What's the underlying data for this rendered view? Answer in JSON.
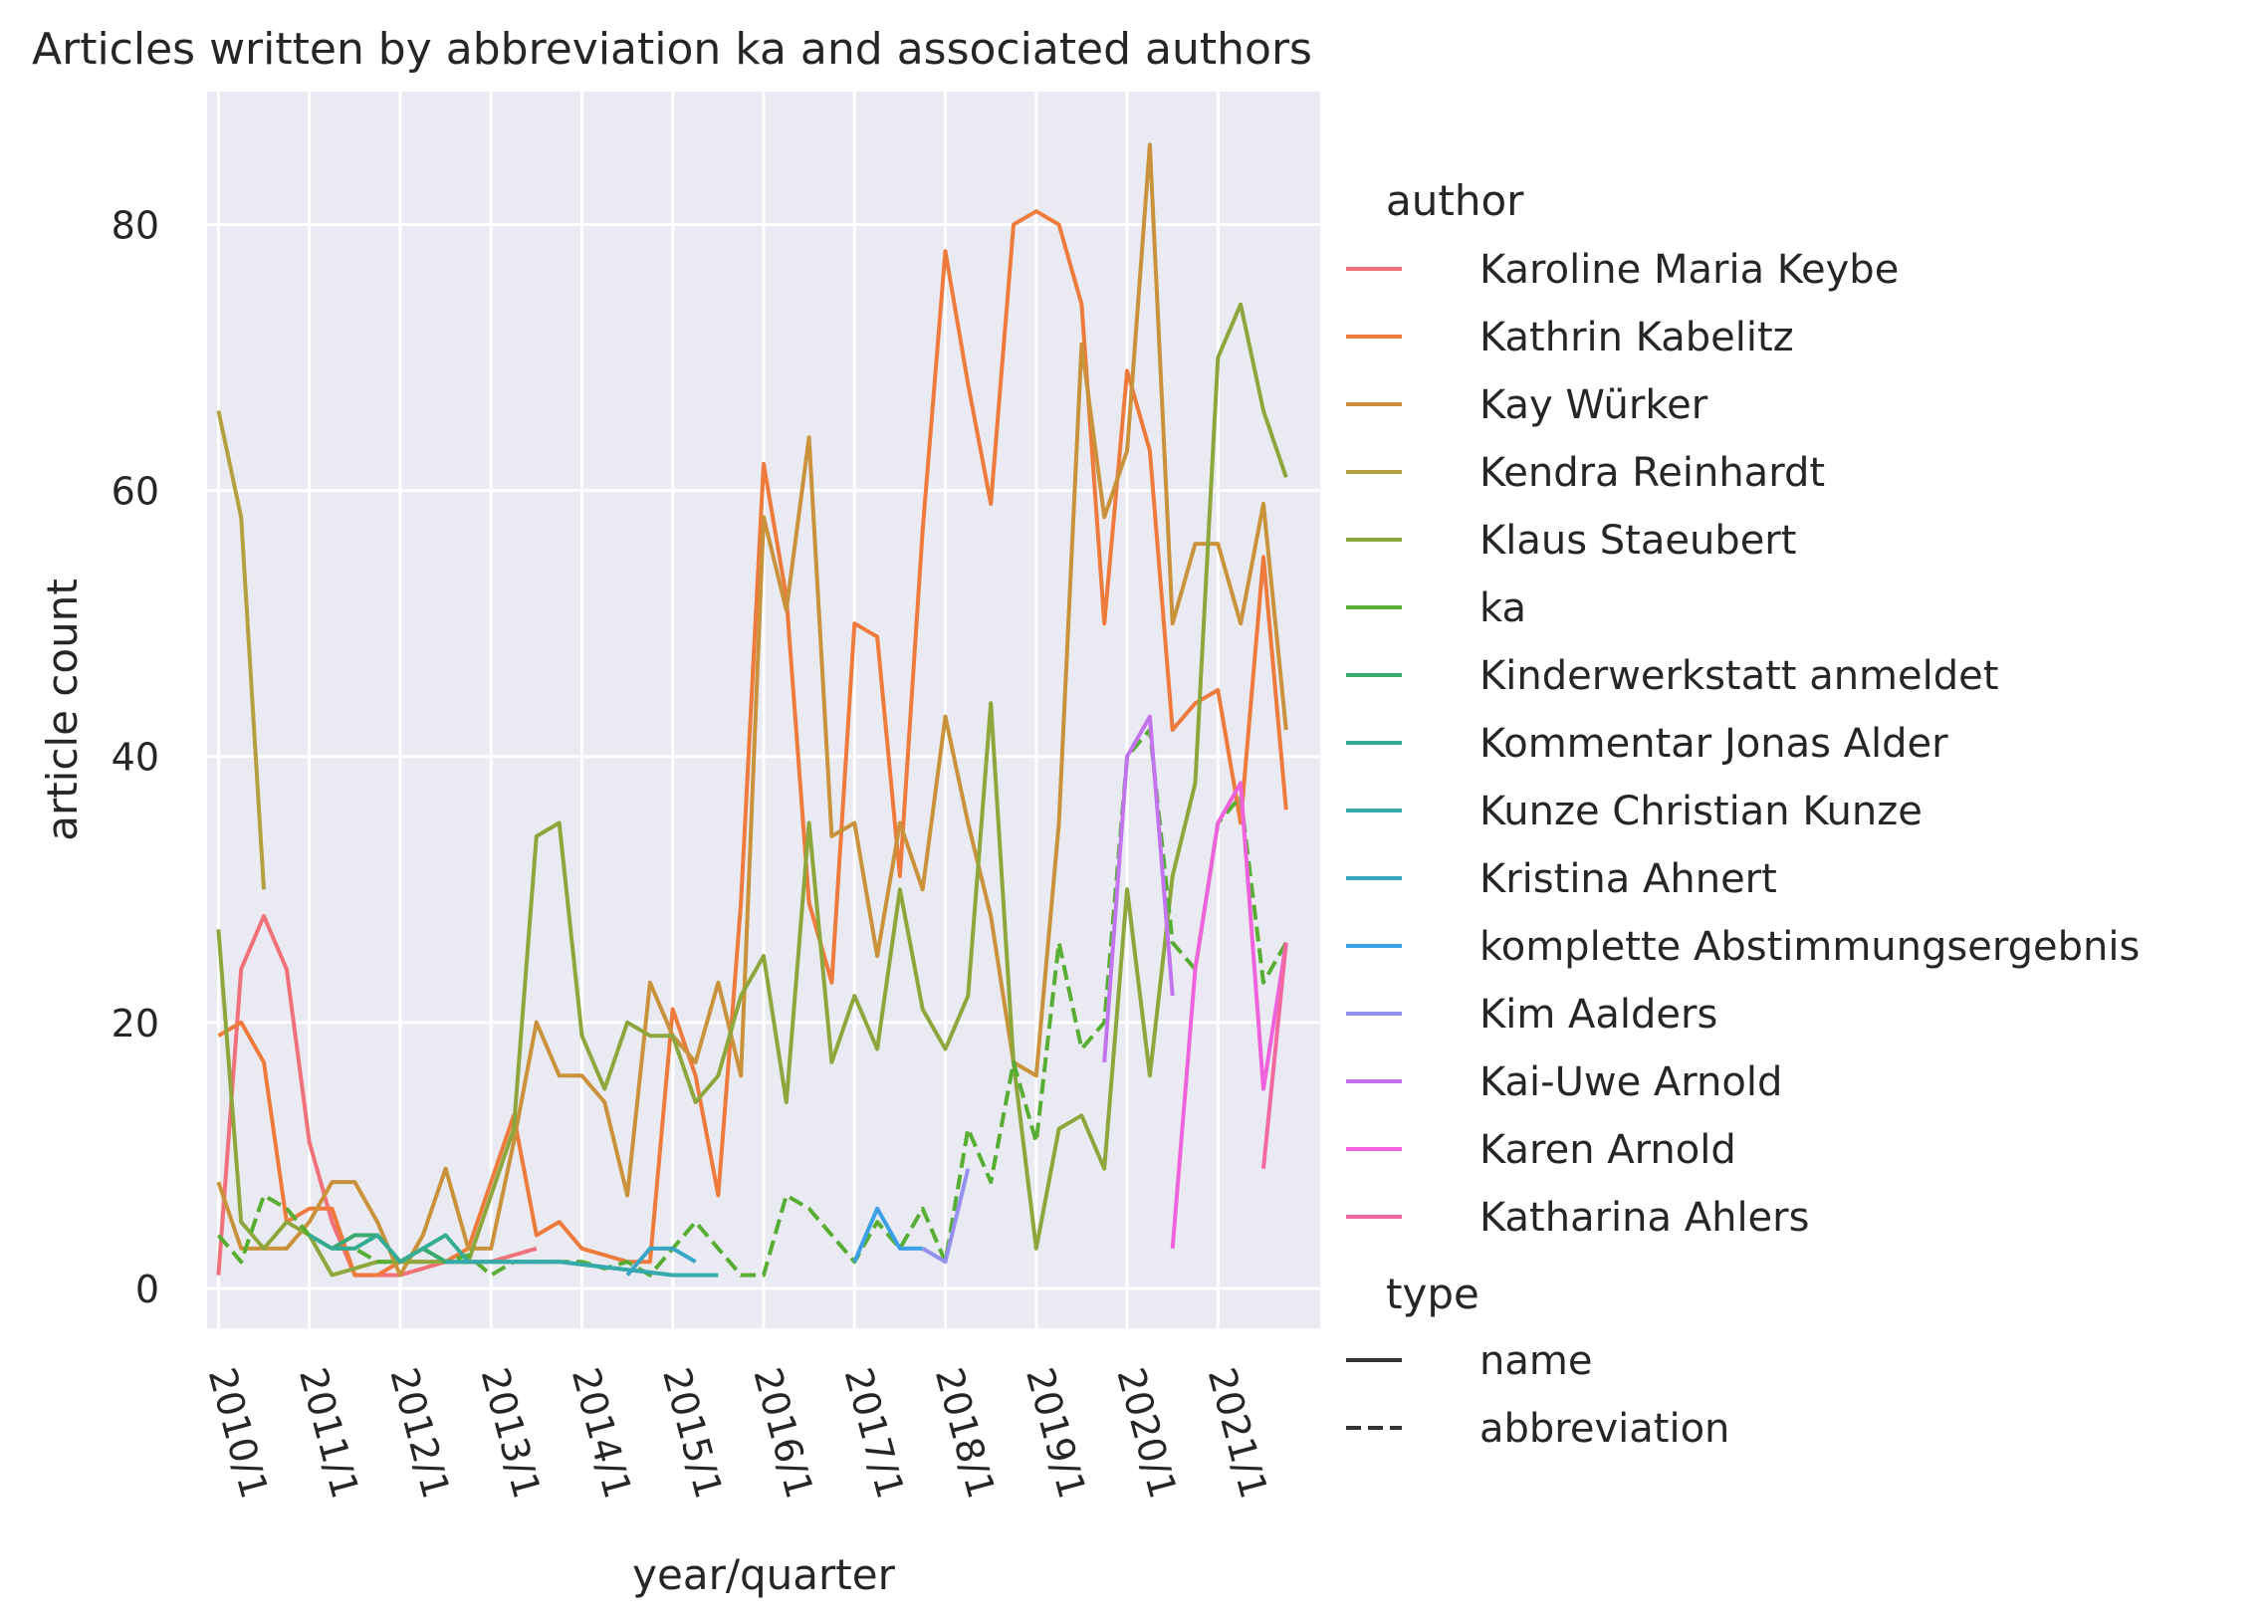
{
  "chart_data": {
    "type": "line",
    "title": "Articles written by abbreviation ka and associated authors",
    "xlabel": "year/quarter",
    "ylabel": "article count",
    "x_ticks": [
      "2010/1",
      "2011/1",
      "2012/1",
      "2013/1",
      "2014/1",
      "2015/1",
      "2016/1",
      "2017/1",
      "2018/1",
      "2019/1",
      "2020/1",
      "2021/1"
    ],
    "y_ticks": [
      0,
      20,
      40,
      60,
      80
    ],
    "ylim": [
      -3,
      90
    ],
    "xlim": [
      -0.5,
      48.5
    ],
    "x_unit": "quarter index from 2010/1",
    "grid": true,
    "legend_placement": "right",
    "legend": {
      "hue_title": "author",
      "style_title": "type",
      "style_entries": [
        {
          "label": "name",
          "dash": "solid"
        },
        {
          "label": "abbreviation",
          "dash": "dashed"
        }
      ]
    },
    "series": [
      {
        "name": "Karoline Maria Keybe",
        "color": "#f0717a",
        "dash": "solid",
        "points": [
          [
            0,
            1
          ],
          [
            1,
            24
          ],
          [
            2,
            28
          ],
          [
            3,
            24
          ],
          [
            4,
            11
          ],
          [
            5,
            5
          ],
          [
            6,
            1
          ],
          [
            7,
            1
          ],
          [
            8,
            1
          ],
          [
            9,
            1.5
          ],
          [
            10,
            2
          ],
          [
            11,
            2
          ],
          [
            12,
            2
          ],
          [
            13,
            2.5
          ],
          [
            14,
            3
          ]
        ]
      },
      {
        "name": "Kathrin Kabelitz",
        "color": "#ee7a3b",
        "dash": "solid",
        "points": [
          [
            0,
            19
          ],
          [
            1,
            20
          ],
          [
            2,
            17
          ],
          [
            3,
            5
          ],
          [
            4,
            6
          ],
          [
            5,
            6
          ],
          [
            6,
            1
          ],
          [
            7,
            1
          ],
          [
            8,
            2
          ],
          [
            9,
            2
          ],
          [
            10,
            2
          ],
          [
            11,
            3
          ],
          [
            12,
            8
          ],
          [
            13,
            13
          ],
          [
            14,
            4
          ],
          [
            15,
            5
          ],
          [
            16,
            3
          ],
          [
            17,
            2.5
          ],
          [
            18,
            2
          ],
          [
            19,
            2
          ],
          [
            20,
            21
          ],
          [
            21,
            16
          ],
          [
            22,
            7
          ],
          [
            23,
            29
          ],
          [
            24,
            62
          ],
          [
            25,
            52
          ],
          [
            26,
            29
          ],
          [
            27,
            23
          ],
          [
            28,
            50
          ],
          [
            29,
            49
          ],
          [
            30,
            31
          ],
          [
            31,
            57
          ],
          [
            32,
            78
          ],
          [
            33,
            68
          ],
          [
            34,
            59
          ],
          [
            35,
            80
          ],
          [
            36,
            81
          ],
          [
            37,
            80
          ],
          [
            38,
            74
          ],
          [
            39,
            50
          ],
          [
            40,
            69
          ],
          [
            41,
            63
          ],
          [
            42,
            42
          ],
          [
            43,
            44
          ],
          [
            44,
            45
          ],
          [
            45,
            35
          ],
          [
            46,
            55
          ],
          [
            47,
            36
          ]
        ]
      },
      {
        "name": "Kay Würker",
        "color": "#c9923b",
        "dash": "solid",
        "points": [
          [
            0,
            8
          ],
          [
            1,
            3
          ],
          [
            2,
            3
          ],
          [
            3,
            3
          ],
          [
            4,
            5
          ],
          [
            5,
            8
          ],
          [
            6,
            8
          ],
          [
            7,
            5
          ],
          [
            8,
            1
          ],
          [
            9,
            4
          ],
          [
            10,
            9
          ],
          [
            11,
            3
          ],
          [
            12,
            3
          ],
          [
            13,
            11
          ],
          [
            14,
            20
          ],
          [
            15,
            16
          ],
          [
            16,
            16
          ],
          [
            17,
            14
          ],
          [
            18,
            7
          ],
          [
            19,
            23
          ],
          [
            20,
            19
          ],
          [
            21,
            17
          ],
          [
            22,
            23
          ],
          [
            23,
            16
          ],
          [
            24,
            58
          ],
          [
            25,
            51
          ],
          [
            26,
            64
          ],
          [
            27,
            34
          ],
          [
            28,
            35
          ],
          [
            29,
            25
          ],
          [
            30,
            35
          ],
          [
            31,
            30
          ],
          [
            32,
            43
          ],
          [
            33,
            35
          ],
          [
            34,
            28
          ],
          [
            35,
            17
          ],
          [
            36,
            16
          ],
          [
            37,
            35
          ],
          [
            38,
            71
          ],
          [
            39,
            58
          ],
          [
            40,
            63
          ],
          [
            41,
            86
          ],
          [
            42,
            50
          ],
          [
            43,
            56
          ],
          [
            44,
            56
          ],
          [
            45,
            50
          ],
          [
            46,
            59
          ],
          [
            47,
            42
          ]
        ]
      },
      {
        "name": "Kendra Reinhardt",
        "color": "#b4a03e",
        "dash": "solid",
        "points": [
          [
            0,
            66
          ],
          [
            1,
            58
          ],
          [
            2,
            30
          ]
        ]
      },
      {
        "name": "Klaus Staeubert",
        "color": "#8ea73c",
        "dash": "solid",
        "points": [
          [
            0,
            27
          ],
          [
            1,
            5
          ],
          [
            2,
            3
          ],
          [
            3,
            5
          ],
          [
            4,
            4
          ],
          [
            5,
            1
          ],
          [
            6,
            1.5
          ],
          [
            7,
            2
          ],
          [
            8,
            2
          ],
          [
            9,
            2
          ],
          [
            10,
            2
          ],
          [
            11,
            2
          ],
          [
            12,
            7
          ],
          [
            13,
            12
          ],
          [
            14,
            34
          ],
          [
            15,
            35
          ],
          [
            16,
            19
          ],
          [
            17,
            15
          ],
          [
            18,
            20
          ],
          [
            19,
            19
          ],
          [
            20,
            19
          ],
          [
            21,
            14
          ],
          [
            22,
            16
          ],
          [
            23,
            22
          ],
          [
            24,
            25
          ],
          [
            25,
            14
          ],
          [
            26,
            35
          ],
          [
            27,
            17
          ],
          [
            28,
            22
          ],
          [
            29,
            18
          ],
          [
            30,
            30
          ],
          [
            31,
            21
          ],
          [
            32,
            18
          ],
          [
            33,
            22
          ],
          [
            34,
            44
          ],
          [
            35,
            17
          ],
          [
            36,
            3
          ],
          [
            37,
            12
          ],
          [
            38,
            13
          ],
          [
            39,
            9
          ],
          [
            40,
            30
          ],
          [
            41,
            16
          ],
          [
            42,
            31
          ],
          [
            43,
            38
          ],
          [
            44,
            70
          ],
          [
            45,
            74
          ],
          [
            46,
            66
          ],
          [
            47,
            61
          ]
        ]
      },
      {
        "name": "ka",
        "color": "#58ad33",
        "dash": "dashed",
        "points": [
          [
            0,
            4
          ],
          [
            1,
            2
          ],
          [
            2,
            7
          ],
          [
            3,
            6
          ],
          [
            4,
            4
          ],
          [
            5,
            3
          ],
          [
            6,
            3
          ],
          [
            7,
            2
          ],
          [
            8,
            2
          ],
          [
            9,
            3
          ],
          [
            10,
            2
          ],
          [
            11,
            2.5
          ],
          [
            12,
            1
          ],
          [
            13,
            2
          ],
          [
            14,
            2
          ],
          [
            15,
            2
          ],
          [
            16,
            2
          ],
          [
            17,
            1.5
          ],
          [
            18,
            2
          ],
          [
            19,
            1
          ],
          [
            20,
            3
          ],
          [
            21,
            5
          ],
          [
            22,
            3
          ],
          [
            23,
            1
          ],
          [
            24,
            1
          ],
          [
            25,
            7
          ],
          [
            26,
            6
          ],
          [
            27,
            4
          ],
          [
            28,
            2
          ],
          [
            29,
            5
          ],
          [
            30,
            3
          ],
          [
            31,
            6
          ],
          [
            32,
            2
          ],
          [
            33,
            12
          ],
          [
            34,
            8
          ],
          [
            35,
            17
          ],
          [
            36,
            11
          ],
          [
            37,
            26
          ],
          [
            38,
            18
          ],
          [
            39,
            20
          ],
          [
            40,
            40
          ],
          [
            41,
            42
          ],
          [
            42,
            26
          ],
          [
            43,
            24
          ],
          [
            44,
            35
          ],
          [
            45,
            37
          ],
          [
            46,
            23
          ],
          [
            47,
            26
          ]
        ]
      },
      {
        "name": "Kinderwerkstatt anmeldet",
        "color": "#3aa86f",
        "dash": "solid",
        "points": [
          [
            5,
            3
          ],
          [
            6,
            4
          ],
          [
            7,
            4
          ],
          [
            8,
            2
          ],
          [
            9,
            3
          ],
          [
            10,
            2
          ],
          [
            11,
            2
          ]
        ]
      },
      {
        "name": "Kommentar Jonas Alder",
        "color": "#35ab93",
        "dash": "solid",
        "points": [
          [
            4,
            4
          ],
          [
            5,
            3
          ],
          [
            6,
            3
          ],
          [
            7,
            4
          ],
          [
            8,
            2
          ],
          [
            9,
            3
          ],
          [
            10,
            4
          ],
          [
            11,
            2
          ],
          [
            12,
            2
          ],
          [
            13,
            2
          ],
          [
            14,
            2
          ],
          [
            15,
            2
          ],
          [
            16,
            1.8
          ],
          [
            17,
            1.6
          ],
          [
            18,
            1.4
          ],
          [
            19,
            1.2
          ]
        ]
      },
      {
        "name": "Kunze Christian Kunze",
        "color": "#36aaaa",
        "dash": "solid",
        "points": [
          [
            10,
            2
          ],
          [
            11,
            2
          ],
          [
            12,
            2
          ],
          [
            13,
            2
          ],
          [
            14,
            2
          ],
          [
            15,
            2
          ],
          [
            16,
            1.8
          ],
          [
            17,
            1.6
          ],
          [
            18,
            1.4
          ],
          [
            19,
            1.2
          ],
          [
            20,
            1
          ],
          [
            21,
            1
          ],
          [
            22,
            1
          ]
        ]
      },
      {
        "name": "Kristina Ahnert",
        "color": "#38a6c4",
        "dash": "solid",
        "points": [
          [
            18,
            1
          ],
          [
            19,
            3
          ],
          [
            20,
            3
          ],
          [
            21,
            2
          ]
        ]
      },
      {
        "name": "komplette Abstimmungsergebnis",
        "color": "#3ba0e6",
        "dash": "solid",
        "points": [
          [
            28,
            2
          ],
          [
            29,
            6
          ],
          [
            30,
            3
          ],
          [
            31,
            3
          ]
        ]
      },
      {
        "name": "Kim Aalders",
        "color": "#958ff0",
        "dash": "solid",
        "points": [
          [
            31,
            3
          ],
          [
            32,
            2
          ],
          [
            33,
            9
          ]
        ]
      },
      {
        "name": "Kai-Uwe Arnold",
        "color": "#c274ef",
        "dash": "solid",
        "points": [
          [
            39,
            17
          ],
          [
            40,
            40
          ],
          [
            41,
            43
          ],
          [
            42,
            22
          ]
        ]
      },
      {
        "name": "Karen Arnold",
        "color": "#ef62dc",
        "dash": "solid",
        "points": [
          [
            42,
            3
          ],
          [
            43,
            24
          ],
          [
            44,
            35
          ],
          [
            45,
            38
          ],
          [
            46,
            15
          ],
          [
            47,
            26
          ]
        ]
      },
      {
        "name": "Katharina Ahlers",
        "color": "#f3699f",
        "dash": "solid",
        "points": [
          [
            46,
            9
          ],
          [
            47,
            26
          ]
        ]
      }
    ]
  }
}
